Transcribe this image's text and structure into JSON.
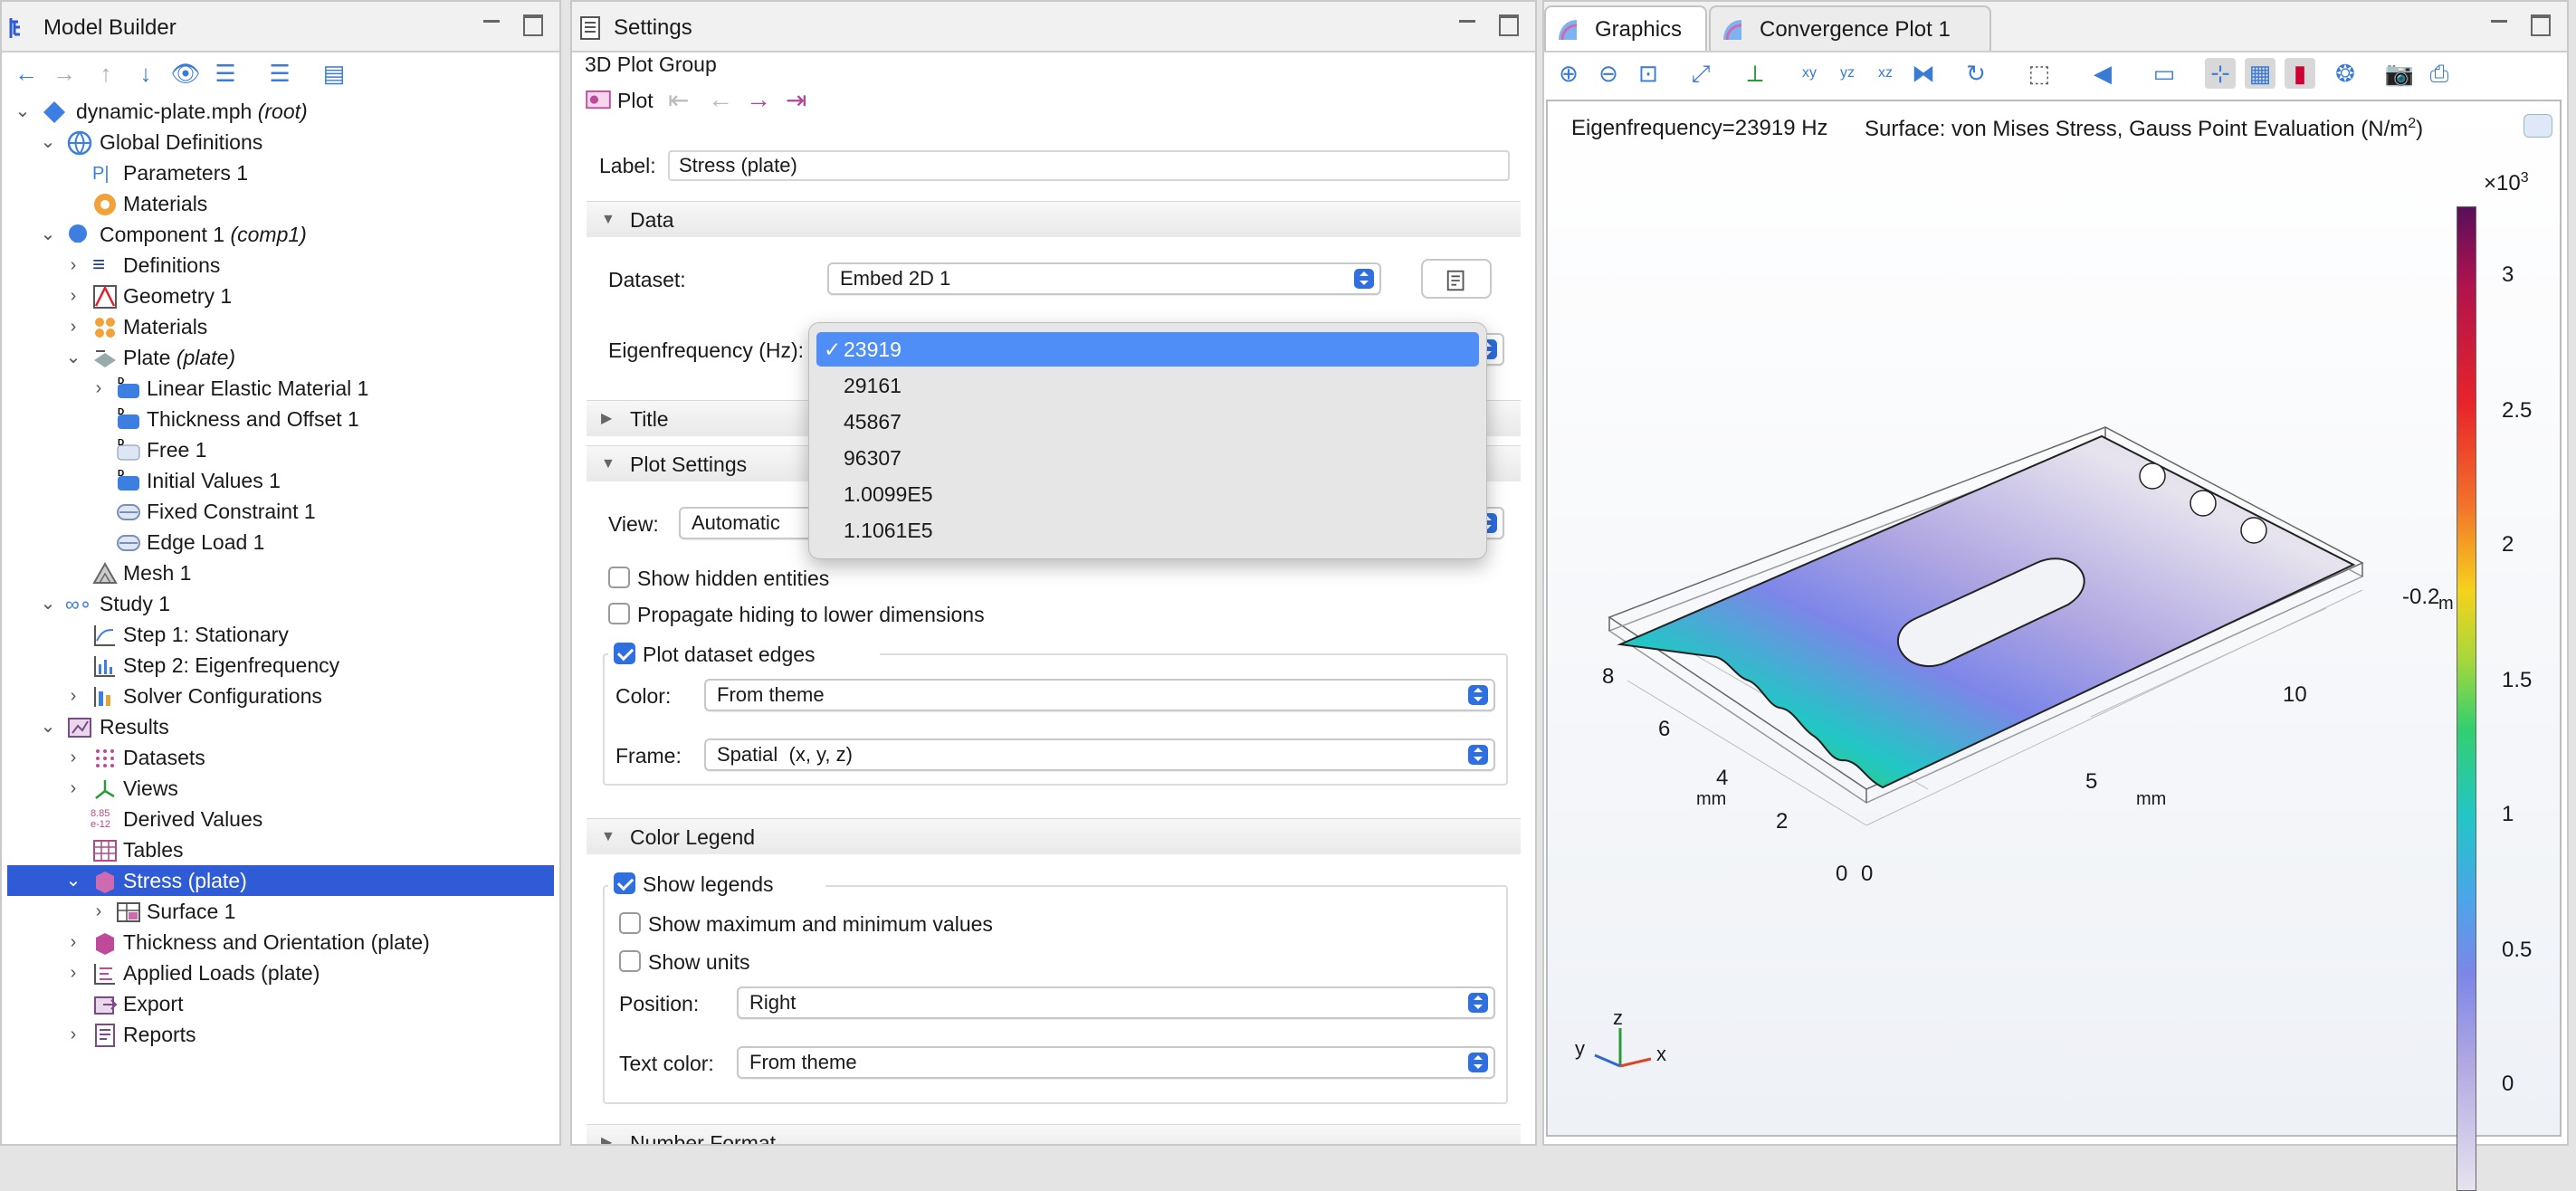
{
  "model_builder": {
    "title": "Model Builder",
    "tree": [
      {
        "label": "dynamic-plate.mph",
        "suffix": "(root)"
      },
      {
        "label": "Global Definitions"
      },
      {
        "label": "Parameters 1"
      },
      {
        "label": "Materials"
      },
      {
        "label": "Component 1",
        "suffix": "(comp1)"
      },
      {
        "label": "Definitions"
      },
      {
        "label": "Geometry 1"
      },
      {
        "label": "Materials"
      },
      {
        "label": "Plate",
        "suffix": "(plate)"
      },
      {
        "label": "Linear Elastic Material 1"
      },
      {
        "label": "Thickness and Offset 1"
      },
      {
        "label": "Free 1"
      },
      {
        "label": "Initial Values 1"
      },
      {
        "label": "Fixed Constraint 1"
      },
      {
        "label": "Edge Load 1"
      },
      {
        "label": "Mesh 1"
      },
      {
        "label": "Study 1"
      },
      {
        "label": "Step 1: Stationary"
      },
      {
        "label": "Step 2: Eigenfrequency"
      },
      {
        "label": "Solver Configurations"
      },
      {
        "label": "Results"
      },
      {
        "label": "Datasets"
      },
      {
        "label": "Views"
      },
      {
        "label": "Derived Values"
      },
      {
        "label": "Tables"
      },
      {
        "label": "Stress (plate)"
      },
      {
        "label": "Surface 1"
      },
      {
        "label": "Thickness and Orientation (plate)"
      },
      {
        "label": "Applied Loads (plate)"
      },
      {
        "label": "Export"
      },
      {
        "label": "Reports"
      }
    ]
  },
  "settings": {
    "title": "Settings",
    "subtitle": "3D Plot Group",
    "plot_button": "Plot",
    "label_caption": "Label:",
    "label_value": "Stress (plate)",
    "sections": {
      "data": "Data",
      "title": "Title",
      "plot_settings": "Plot Settings",
      "color_legend": "Color Legend",
      "number_format": "Number Format"
    },
    "dataset_caption": "Dataset:",
    "dataset_value": "Embed 2D 1",
    "eigen_caption": "Eigenfrequency (Hz):",
    "eigen_options": [
      "23919",
      "29161",
      "45867",
      "96307",
      "1.0099E5",
      "1.1061E5"
    ],
    "eigen_selected": "23919",
    "view_caption": "View:",
    "view_value": "Automatic",
    "show_hidden": "Show hidden entities",
    "propagate_hiding": "Propagate hiding to lower dimensions",
    "plot_dataset_edges": "Plot dataset edges",
    "color_caption": "Color:",
    "color_value": "From theme",
    "frame_caption": "Frame:",
    "frame_value": "Spatial  (x, y, z)",
    "show_legends": "Show legends",
    "show_maxmin": "Show maximum and minimum values",
    "show_units": "Show units",
    "position_caption": "Position:",
    "position_value": "Right",
    "text_color_caption": "Text color:",
    "text_color_value": "From theme"
  },
  "graphics": {
    "tab_graphics": "Graphics",
    "tab_convergence": "Convergence Plot 1",
    "eigen_text": "Eigenfrequency=23919 Hz",
    "surface_text": "Surface: von Mises Stress, Gauss Point Evaluation (N/m",
    "surface_sup": "2",
    "surface_close": ")",
    "legend_multiplier": "×10",
    "legend_exp": "3",
    "legend_ticks": [
      "3",
      "2.5",
      "2",
      "1.5",
      "1",
      "0.5",
      "0"
    ],
    "axis_labels": {
      "y_ticks": [
        "8",
        "6",
        "4",
        "2",
        "0"
      ],
      "x_ticks": [
        "0",
        "5",
        "10"
      ],
      "z_tick": "-0.2",
      "y_unit": "mm",
      "x_unit": "mm",
      "z_unit": "m"
    },
    "triad": {
      "x": "x",
      "y": "y",
      "z": "z"
    }
  },
  "colors": {
    "selection": "#2f5cd6",
    "dropdown_highlight": "#4f8ef7",
    "accent": "#2f6fe0"
  }
}
